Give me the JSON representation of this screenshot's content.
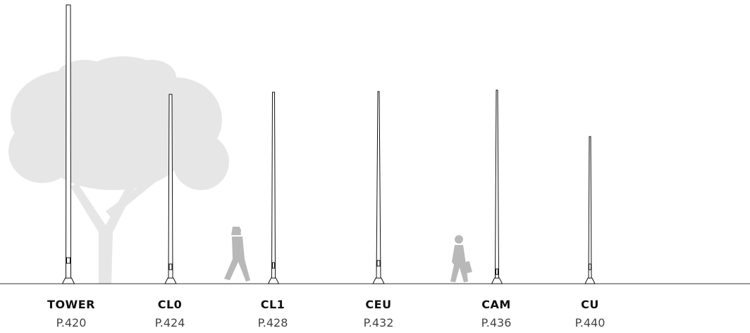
{
  "poles": [
    {
      "name": "TOWER",
      "page": "P.420"
    },
    {
      "name": "CL0",
      "page": "P.424"
    },
    {
      "name": "CL1",
      "page": "P.428"
    },
    {
      "name": "CEU",
      "page": "P.432"
    },
    {
      "name": "CAM",
      "page": "P.436"
    },
    {
      "name": "CU",
      "page": "P.440"
    }
  ]
}
